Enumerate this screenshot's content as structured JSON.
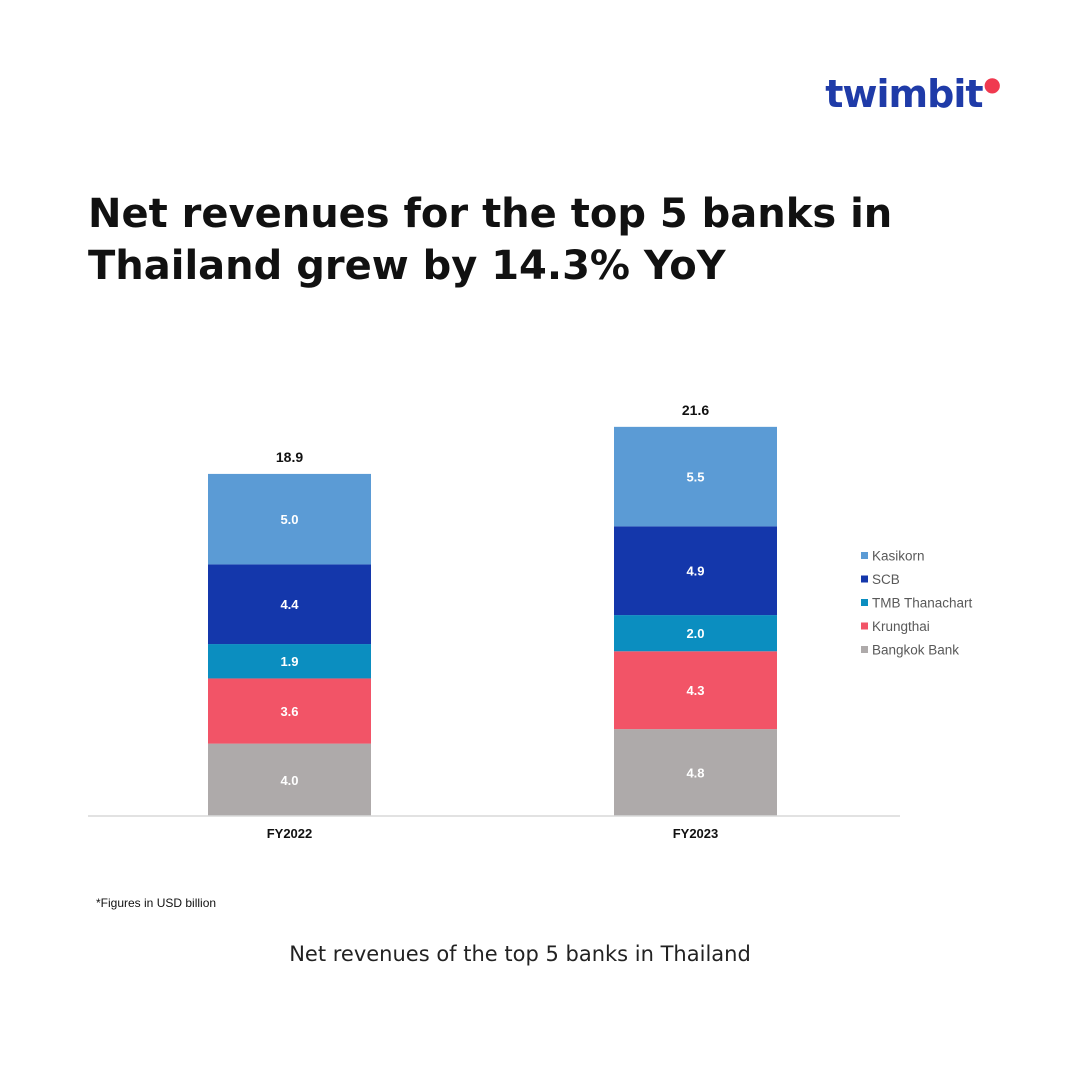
{
  "brand": {
    "logo_text": "twimbit"
  },
  "headline": "Net revenues for the top 5 banks in Thailand grew by 14.3% YoY",
  "footnote": "*Figures in USD billion",
  "caption": "Net revenues of the top 5 banks in Thailand",
  "chart_data": {
    "type": "bar",
    "stacked": true,
    "categories": [
      "FY2022",
      "FY2023"
    ],
    "totals": [
      "18.9",
      "21.6"
    ],
    "series": [
      {
        "name": "Bangkok Bank",
        "color": "#aeaaaa",
        "values": [
          4.0,
          4.8
        ]
      },
      {
        "name": "Krungthai",
        "color": "#f25467",
        "values": [
          3.6,
          4.3
        ]
      },
      {
        "name": "TMB Thanachart",
        "color": "#0b8ec0",
        "values": [
          1.9,
          2.0
        ]
      },
      {
        "name": "SCB",
        "color": "#1437ab",
        "values": [
          4.4,
          4.9
        ]
      },
      {
        "name": "Kasikorn",
        "color": "#5b9bd5",
        "values": [
          5.0,
          5.5
        ]
      }
    ],
    "legend_order": [
      "Kasikorn",
      "SCB",
      "TMB Thanachart",
      "Krungthai",
      "Bangkok Bank"
    ],
    "legend_position": "right",
    "ylim": [
      0,
      22
    ],
    "grid": false,
    "xlabel": "",
    "ylabel": ""
  }
}
